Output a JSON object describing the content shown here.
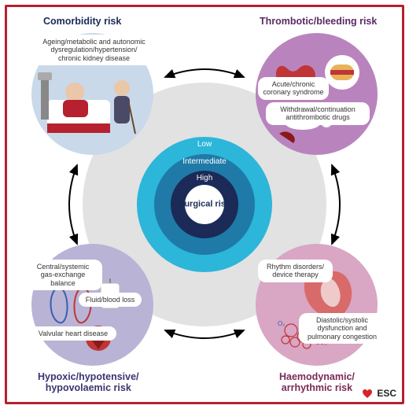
{
  "figure": {
    "type": "infographic",
    "frame_color": "#b7202e",
    "background_color": "#ffffff",
    "bg_disc": {
      "diameter": 310,
      "color": "#e2e2e3"
    },
    "center_rings": {
      "outer": {
        "diameter": 172,
        "color": "#2cb6d9",
        "label": "Low"
      },
      "intermediate": {
        "diameter": 128,
        "color": "#1f7aa8",
        "label": "Intermediate"
      },
      "inner": {
        "diameter": 86,
        "color": "#1b2a57",
        "label": "High"
      },
      "core": {
        "diameter": 50,
        "color": "#ffffff",
        "label": "Surgical\nrisk",
        "text_color": "#1b2a57"
      }
    },
    "quadrants": {
      "top_left": {
        "title": "Comorbidity risk",
        "fill": "#c9d9ea",
        "title_color": "#1b2a57",
        "chips": [
          "Ageing/metabolic and autonomic\ndysregulation/hypertension/\nchronic kidney disease"
        ]
      },
      "top_right": {
        "title": "Thrombotic/bleeding risk",
        "fill": "#b984be",
        "title_color": "#5a2a63",
        "chips": [
          "Acute/chronic\ncoronary syndrome",
          "Withdrawal/continuation\nantithrombotic drugs"
        ]
      },
      "bottom_left": {
        "title": "Hypoxic/hypotensive/\nhypovolaemic risk",
        "fill": "#b9b3d5",
        "title_color": "#3a3570",
        "chips": [
          "Central/systemic\ngas-exchange balance",
          "Fluid/blood loss",
          "Valvular heart disease"
        ]
      },
      "bottom_right": {
        "title": "Haemodynamic/\narrhythmic risk",
        "fill": "#d9a6c4",
        "title_color": "#7a2a55",
        "chips": [
          "Rhythm disorders/\ndevice therapy",
          "Diastolic/systolic\ndysfunction and\npulmonary congestion"
        ]
      }
    },
    "arrow_color": "#000000",
    "logo": {
      "text": "ESC",
      "heart_color": "#d8232a",
      "text_color": "#222222"
    }
  }
}
